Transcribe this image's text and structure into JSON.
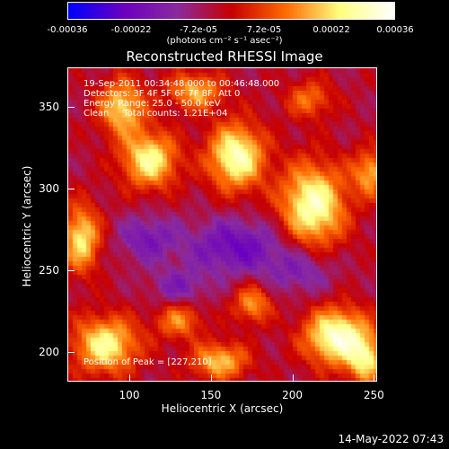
{
  "colorbar": {
    "ticks": [
      "-0.00036",
      "-0.00022",
      "-7.2e-05",
      "7.2e-05",
      "0.00022",
      "0.00036"
    ],
    "tick_values": [
      -0.00036,
      -0.00022,
      -7.2e-05,
      7.2e-05,
      0.00022,
      0.00036
    ],
    "unit_label": "(photons cm⁻² s⁻¹ asec⁻²)",
    "colors": [
      "#0000ff",
      "#6a00c0",
      "#8a2aa0",
      "#c80000",
      "#ff6a00",
      "#ffff80",
      "#ffffff"
    ]
  },
  "title": "Reconstructed RHESSI Image",
  "info": {
    "time": "19-Sep-2011 00:34:48.000 to 00:46:48.000",
    "detectors": "Detectors: 3F 4F 5F 6F 7F 8F, Att 0",
    "energy": "Energy Range: 25.0 - 50.0 keV",
    "clean": "Clean     Total counts: 1.21E+04",
    "peak": "Position of Peak = [227,210]"
  },
  "chart_data": {
    "type": "heatmap",
    "title": "Reconstructed RHESSI Image",
    "xlabel": "Heliocentric X (arcsec)",
    "ylabel": "Heliocentric Y (arcsec)",
    "xlim": [
      62,
      252
    ],
    "ylim": [
      182,
      374
    ],
    "x_ticks": [
      "100",
      "150",
      "200",
      "250"
    ],
    "x_tick_values": [
      100,
      150,
      200,
      250
    ],
    "y_ticks": [
      "200",
      "250",
      "300",
      "350"
    ],
    "y_tick_values": [
      200,
      250,
      300,
      350
    ],
    "peak": [
      227,
      210
    ],
    "blobs": [
      {
        "x": 95,
        "y": 350,
        "amp": 0.00026,
        "sx": 10,
        "sy": 12
      },
      {
        "x": 112,
        "y": 318,
        "amp": 0.0003,
        "sx": 12,
        "sy": 12
      },
      {
        "x": 165,
        "y": 320,
        "amp": 0.00034,
        "sx": 12,
        "sy": 14
      },
      {
        "x": 140,
        "y": 360,
        "amp": 0.00022,
        "sx": 12,
        "sy": 8
      },
      {
        "x": 210,
        "y": 355,
        "amp": 0.00016,
        "sx": 10,
        "sy": 8
      },
      {
        "x": 212,
        "y": 290,
        "amp": 0.00034,
        "sx": 14,
        "sy": 18
      },
      {
        "x": 248,
        "y": 310,
        "amp": 0.00022,
        "sx": 8,
        "sy": 10
      },
      {
        "x": 70,
        "y": 270,
        "amp": 0.00028,
        "sx": 8,
        "sy": 14
      },
      {
        "x": 85,
        "y": 205,
        "amp": 0.0003,
        "sx": 14,
        "sy": 12
      },
      {
        "x": 130,
        "y": 220,
        "amp": 0.00018,
        "sx": 10,
        "sy": 8
      },
      {
        "x": 155,
        "y": 195,
        "amp": 0.00024,
        "sx": 12,
        "sy": 8
      },
      {
        "x": 175,
        "y": 230,
        "amp": 0.0002,
        "sx": 8,
        "sy": 8
      },
      {
        "x": 227,
        "y": 210,
        "amp": 0.00036,
        "sx": 14,
        "sy": 12
      },
      {
        "x": 245,
        "y": 195,
        "amp": 0.00024,
        "sx": 8,
        "sy": 10
      },
      {
        "x": 165,
        "y": 265,
        "amp": -0.00018,
        "sx": 22,
        "sy": 12
      },
      {
        "x": 110,
        "y": 270,
        "amp": -0.00014,
        "sx": 12,
        "sy": 10
      },
      {
        "x": 205,
        "y": 250,
        "amp": -0.00012,
        "sx": 14,
        "sy": 10
      },
      {
        "x": 130,
        "y": 240,
        "amp": -0.00012,
        "sx": 12,
        "sy": 8
      }
    ]
  },
  "footer_date": "14-May-2022 07:43"
}
